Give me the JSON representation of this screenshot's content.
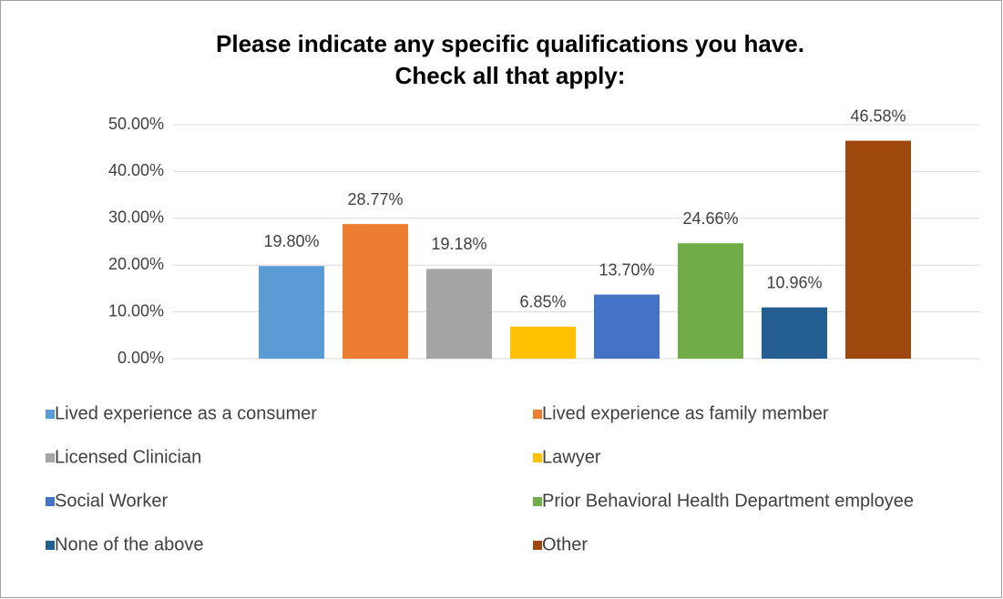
{
  "chart_data": {
    "type": "bar",
    "title": [
      "Please indicate any specific qualifications you have.",
      "Check all that apply:"
    ],
    "categories": [
      "Lived experience as a consumer",
      "Lived experience as family member",
      "Licensed Clinician",
      "Lawyer",
      "Social Worker",
      "Prior Behavioral Health Department employee",
      "None of the above",
      "Other"
    ],
    "values": [
      19.8,
      28.77,
      19.18,
      6.85,
      13.7,
      24.66,
      10.96,
      46.58
    ],
    "value_labels": [
      "19.80%",
      "28.77%",
      "19.18%",
      "6.85%",
      "13.70%",
      "24.66%",
      "10.96%",
      "46.58%"
    ],
    "colors": [
      "#5b9bd5",
      "#ed7d31",
      "#a5a5a5",
      "#ffc000",
      "#4472c4",
      "#70ad47",
      "#255e91",
      "#9e480e"
    ],
    "ylim": [
      0,
      50
    ],
    "yticks": [
      {
        "value": 0,
        "label": "0.00%"
      },
      {
        "value": 10,
        "label": "10.00%"
      },
      {
        "value": 20,
        "label": "20.00%"
      },
      {
        "value": 30,
        "label": "30.00%"
      },
      {
        "value": 40,
        "label": "40.00%"
      },
      {
        "value": 50,
        "label": "50.00%"
      }
    ],
    "grid": true,
    "legend": "bottom"
  }
}
